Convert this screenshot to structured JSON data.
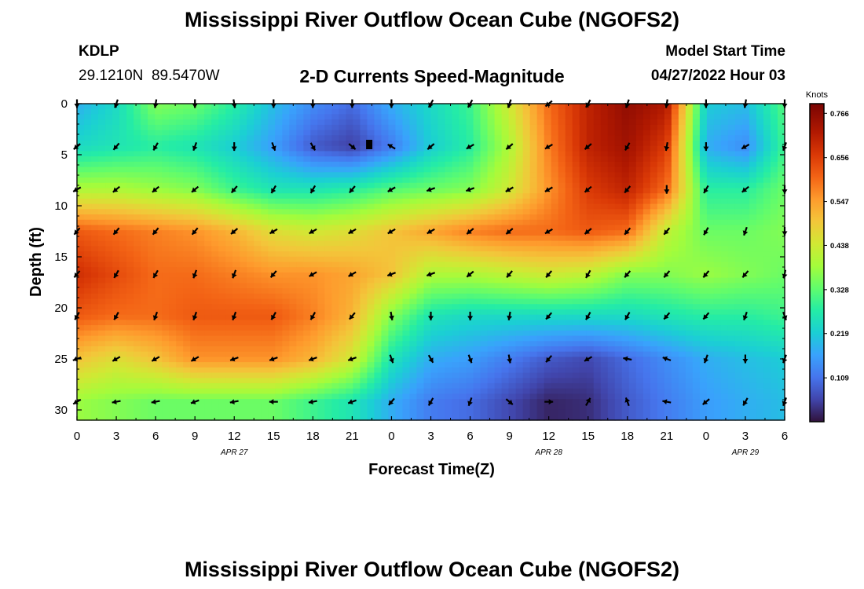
{
  "title_top": "Mississippi River Outflow Ocean Cube (NGOFS2)",
  "title_bottom": "Mississippi River Outflow Ocean Cube (NGOFS2)",
  "station": {
    "code": "KDLP",
    "coords": "29.1210N  89.5470W"
  },
  "subtitle": "2-D Currents Speed-Magnitude",
  "model_start": {
    "label": "Model Start Time",
    "value": "04/27/2022 Hour 03"
  },
  "chart_data": {
    "type": "heatmap",
    "title": "2-D Currents Speed-Magnitude",
    "xlabel": "Forecast Time(Z)",
    "ylabel": "Depth (ft)",
    "x_unit": "hours since 00Z Apr 27 2022",
    "xlim": [
      0,
      54
    ],
    "ylim": [
      0,
      31
    ],
    "y_inverted": true,
    "x_ticks": [
      0,
      3,
      6,
      9,
      12,
      15,
      18,
      21,
      24,
      27,
      30,
      33,
      36,
      39,
      42,
      45,
      48,
      51,
      54
    ],
    "x_tick_labels": [
      "0",
      "3",
      "6",
      "9",
      "12",
      "15",
      "18",
      "21",
      "0",
      "3",
      "6",
      "9",
      "12",
      "15",
      "18",
      "21",
      "0",
      "3",
      "6"
    ],
    "date_labels": [
      {
        "x": 12,
        "text": "APR 27"
      },
      {
        "x": 36,
        "text": "APR 28"
      },
      {
        "x": 51,
        "text": "APR 29"
      }
    ],
    "y_ticks": [
      0,
      5,
      10,
      15,
      20,
      25,
      30
    ],
    "colorbar": {
      "unit": "Knots",
      "vmin": 0.0,
      "vmax": 0.79,
      "ticks": [
        0.766,
        0.656,
        0.547,
        0.438,
        0.328,
        0.219,
        0.109
      ],
      "tick_labels": [
        "0.766",
        "0.656",
        "0.547",
        "0.438",
        "0.328",
        "0.219",
        "0.109"
      ]
    },
    "depths": [
      0,
      4.2,
      8.4,
      12.5,
      16.7,
      20.8,
      25,
      29.2
    ],
    "times": [
      0,
      3,
      6,
      9,
      12,
      15,
      18,
      21,
      24,
      27,
      30,
      33,
      36,
      39,
      42,
      45,
      48,
      51,
      54
    ],
    "speed": [
      [
        0.18,
        0.24,
        0.36,
        0.34,
        0.28,
        0.2,
        0.14,
        0.1,
        0.18,
        0.24,
        0.3,
        0.44,
        0.6,
        0.7,
        0.76,
        0.72,
        0.22,
        0.2,
        0.32
      ],
      [
        0.24,
        0.26,
        0.28,
        0.26,
        0.22,
        0.16,
        0.08,
        0.05,
        0.12,
        0.22,
        0.28,
        0.4,
        0.58,
        0.7,
        0.74,
        0.66,
        0.18,
        0.14,
        0.3
      ],
      [
        0.4,
        0.4,
        0.38,
        0.36,
        0.3,
        0.26,
        0.26,
        0.28,
        0.32,
        0.34,
        0.36,
        0.44,
        0.56,
        0.66,
        0.7,
        0.6,
        0.28,
        0.28,
        0.34
      ],
      [
        0.62,
        0.6,
        0.58,
        0.56,
        0.52,
        0.46,
        0.44,
        0.46,
        0.5,
        0.54,
        0.58,
        0.6,
        0.6,
        0.62,
        0.6,
        0.42,
        0.34,
        0.34,
        0.36
      ],
      [
        0.68,
        0.64,
        0.6,
        0.6,
        0.58,
        0.56,
        0.56,
        0.54,
        0.5,
        0.4,
        0.4,
        0.42,
        0.44,
        0.42,
        0.36,
        0.36,
        0.38,
        0.36,
        0.34
      ],
      [
        0.62,
        0.6,
        0.6,
        0.62,
        0.62,
        0.62,
        0.58,
        0.52,
        0.36,
        0.26,
        0.24,
        0.24,
        0.24,
        0.24,
        0.24,
        0.26,
        0.28,
        0.28,
        0.3
      ],
      [
        0.5,
        0.46,
        0.5,
        0.56,
        0.56,
        0.56,
        0.52,
        0.44,
        0.26,
        0.18,
        0.16,
        0.12,
        0.08,
        0.06,
        0.1,
        0.14,
        0.18,
        0.2,
        0.22
      ],
      [
        0.38,
        0.36,
        0.34,
        0.34,
        0.34,
        0.34,
        0.3,
        0.26,
        0.18,
        0.12,
        0.1,
        0.06,
        0.02,
        0.03,
        0.08,
        0.12,
        0.16,
        0.18,
        0.2
      ]
    ],
    "direction_deg": [
      [
        180,
        160,
        170,
        180,
        190,
        180,
        180,
        180,
        180,
        150,
        150,
        160,
        130,
        150,
        160,
        170,
        180,
        170,
        180
      ],
      [
        130,
        140,
        150,
        160,
        180,
        200,
        210,
        230,
        60,
        130,
        120,
        130,
        120,
        130,
        150,
        170,
        180,
        120,
        160
      ],
      [
        120,
        130,
        130,
        130,
        140,
        150,
        150,
        140,
        120,
        110,
        110,
        120,
        120,
        130,
        140,
        180,
        150,
        130,
        180
      ],
      [
        140,
        140,
        140,
        140,
        130,
        120,
        120,
        120,
        120,
        120,
        130,
        130,
        120,
        130,
        140,
        140,
        150,
        160,
        180
      ],
      [
        140,
        150,
        150,
        160,
        160,
        140,
        120,
        120,
        110,
        110,
        130,
        140,
        140,
        150,
        140,
        140,
        140,
        140,
        170
      ],
      [
        150,
        150,
        160,
        160,
        160,
        150,
        150,
        140,
        190,
        180,
        180,
        170,
        140,
        150,
        150,
        140,
        140,
        160,
        200
      ],
      [
        110,
        120,
        120,
        120,
        110,
        110,
        110,
        110,
        200,
        210,
        200,
        190,
        140,
        120,
        80,
        70,
        160,
        180,
        160
      ],
      [
        120,
        100,
        100,
        110,
        100,
        90,
        100,
        110,
        140,
        150,
        160,
        230,
        270,
        330,
        20,
        80,
        130,
        150,
        160
      ]
    ]
  }
}
